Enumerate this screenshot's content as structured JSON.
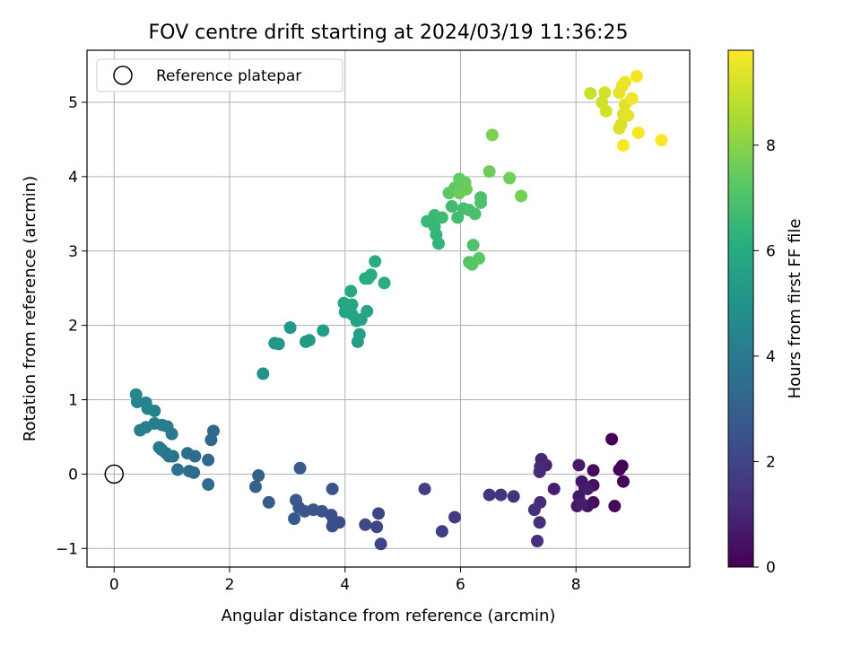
{
  "chart_data": {
    "type": "scatter",
    "title": "FOV centre drift starting at 2024/03/19 11:36:25",
    "xlabel": "Angular distance from reference (arcmin)",
    "ylabel": "Rotation from reference (arcmin)",
    "xlim": [
      -0.47,
      9.97
    ],
    "ylim": [
      -1.25,
      5.7
    ],
    "xticks": [
      0,
      2,
      4,
      6,
      8
    ],
    "yticks": [
      -1,
      0,
      1,
      2,
      3,
      4,
      5
    ],
    "grid": true,
    "legend": {
      "position": "upper left",
      "entries": [
        "Reference platepar"
      ]
    },
    "reference_point": {
      "x": 0,
      "y": 0
    },
    "colorbar": {
      "label": "Hours from first FF file",
      "colormap": "viridis",
      "range": [
        0,
        9.8
      ],
      "ticks": [
        0,
        2,
        4,
        6,
        8
      ]
    },
    "points": [
      {
        "x": 8.62,
        "y": 0.47,
        "c": 0.05
      },
      {
        "x": 8.8,
        "y": 0.11,
        "c": 0.1
      },
      {
        "x": 8.75,
        "y": 0.06,
        "c": 0.15
      },
      {
        "x": 8.82,
        "y": -0.1,
        "c": 0.2
      },
      {
        "x": 8.67,
        "y": -0.43,
        "c": 0.25
      },
      {
        "x": 8.3,
        "y": 0.05,
        "c": 0.3
      },
      {
        "x": 8.3,
        "y": -0.15,
        "c": 0.35
      },
      {
        "x": 8.3,
        "y": -0.38,
        "c": 0.4
      },
      {
        "x": 8.2,
        "y": -0.43,
        "c": 0.45
      },
      {
        "x": 8.15,
        "y": -0.18,
        "c": 0.5
      },
      {
        "x": 8.1,
        "y": -0.1,
        "c": 0.55
      },
      {
        "x": 8.05,
        "y": -0.3,
        "c": 0.6
      },
      {
        "x": 8.02,
        "y": -0.43,
        "c": 0.65
      },
      {
        "x": 8.05,
        "y": 0.12,
        "c": 0.7
      },
      {
        "x": 8.2,
        "y": -0.2,
        "c": 0.75
      },
      {
        "x": 8.1,
        "y": -0.4,
        "c": 0.8
      },
      {
        "x": 7.62,
        "y": -0.2,
        "c": 0.9
      },
      {
        "x": 7.48,
        "y": 0.12,
        "c": 1.0
      },
      {
        "x": 7.4,
        "y": 0.2,
        "c": 1.05
      },
      {
        "x": 7.38,
        "y": 0.1,
        "c": 1.1
      },
      {
        "x": 7.37,
        "y": 0.03,
        "c": 1.15
      },
      {
        "x": 7.38,
        "y": -0.38,
        "c": 1.2
      },
      {
        "x": 7.37,
        "y": -0.65,
        "c": 1.25
      },
      {
        "x": 7.33,
        "y": -0.9,
        "c": 1.3
      },
      {
        "x": 7.28,
        "y": -0.48,
        "c": 1.35
      },
      {
        "x": 6.92,
        "y": -0.3,
        "c": 1.4
      },
      {
        "x": 6.7,
        "y": -0.28,
        "c": 1.45
      },
      {
        "x": 6.5,
        "y": -0.28,
        "c": 1.5
      },
      {
        "x": 5.9,
        "y": -0.58,
        "c": 1.7
      },
      {
        "x": 5.68,
        "y": -0.77,
        "c": 1.8
      },
      {
        "x": 5.38,
        "y": -0.2,
        "c": 1.85
      },
      {
        "x": 4.62,
        "y": -0.94,
        "c": 2.0
      },
      {
        "x": 4.58,
        "y": -0.53,
        "c": 2.05
      },
      {
        "x": 4.55,
        "y": -0.71,
        "c": 2.1
      },
      {
        "x": 4.35,
        "y": -0.68,
        "c": 2.15
      },
      {
        "x": 3.9,
        "y": -0.65,
        "c": 2.25
      },
      {
        "x": 3.8,
        "y": -0.63,
        "c": 2.3
      },
      {
        "x": 3.78,
        "y": -0.7,
        "c": 2.35
      },
      {
        "x": 3.76,
        "y": -0.55,
        "c": 2.4
      },
      {
        "x": 3.78,
        "y": -0.2,
        "c": 2.45
      },
      {
        "x": 3.6,
        "y": -0.5,
        "c": 2.5
      },
      {
        "x": 3.45,
        "y": -0.48,
        "c": 2.55
      },
      {
        "x": 3.3,
        "y": -0.5,
        "c": 2.6
      },
      {
        "x": 3.2,
        "y": -0.45,
        "c": 2.65
      },
      {
        "x": 3.15,
        "y": -0.35,
        "c": 2.7
      },
      {
        "x": 3.12,
        "y": -0.6,
        "c": 2.75
      },
      {
        "x": 3.22,
        "y": 0.08,
        "c": 2.8
      },
      {
        "x": 2.68,
        "y": -0.38,
        "c": 2.9
      },
      {
        "x": 2.5,
        "y": -0.02,
        "c": 3.0
      },
      {
        "x": 2.45,
        "y": -0.17,
        "c": 3.05
      },
      {
        "x": 1.72,
        "y": 0.58,
        "c": 3.2
      },
      {
        "x": 1.68,
        "y": 0.46,
        "c": 3.25
      },
      {
        "x": 1.63,
        "y": 0.19,
        "c": 3.3
      },
      {
        "x": 1.63,
        "y": -0.14,
        "c": 3.35
      },
      {
        "x": 1.4,
        "y": 0.24,
        "c": 3.45
      },
      {
        "x": 1.38,
        "y": 0.02,
        "c": 3.5
      },
      {
        "x": 1.3,
        "y": 0.04,
        "c": 3.55
      },
      {
        "x": 1.27,
        "y": 0.28,
        "c": 3.6
      },
      {
        "x": 1.1,
        "y": 0.06,
        "c": 3.65
      },
      {
        "x": 1.02,
        "y": 0.24,
        "c": 3.7
      },
      {
        "x": 0.95,
        "y": 0.24,
        "c": 3.75
      },
      {
        "x": 0.9,
        "y": 0.28,
        "c": 3.8
      },
      {
        "x": 0.82,
        "y": 0.33,
        "c": 3.85
      },
      {
        "x": 0.78,
        "y": 0.36,
        "c": 3.9
      },
      {
        "x": 1.0,
        "y": 0.54,
        "c": 3.95
      },
      {
        "x": 0.92,
        "y": 0.64,
        "c": 4.0
      },
      {
        "x": 0.83,
        "y": 0.66,
        "c": 4.05
      },
      {
        "x": 0.7,
        "y": 0.68,
        "c": 4.1
      },
      {
        "x": 0.55,
        "y": 0.63,
        "c": 4.15
      },
      {
        "x": 0.45,
        "y": 0.59,
        "c": 4.2
      },
      {
        "x": 0.7,
        "y": 0.85,
        "c": 4.25
      },
      {
        "x": 0.58,
        "y": 0.88,
        "c": 4.3
      },
      {
        "x": 0.55,
        "y": 0.96,
        "c": 4.35
      },
      {
        "x": 0.4,
        "y": 0.97,
        "c": 4.4
      },
      {
        "x": 0.38,
        "y": 1.07,
        "c": 4.45
      },
      {
        "x": 2.58,
        "y": 1.35,
        "c": 5.0
      },
      {
        "x": 2.78,
        "y": 1.76,
        "c": 5.1
      },
      {
        "x": 2.85,
        "y": 1.75,
        "c": 5.15
      },
      {
        "x": 3.05,
        "y": 1.97,
        "c": 5.2
      },
      {
        "x": 3.32,
        "y": 1.78,
        "c": 5.25
      },
      {
        "x": 3.38,
        "y": 1.8,
        "c": 5.3
      },
      {
        "x": 3.62,
        "y": 1.93,
        "c": 5.4
      },
      {
        "x": 4.22,
        "y": 1.78,
        "c": 5.5
      },
      {
        "x": 4.25,
        "y": 1.88,
        "c": 5.55
      },
      {
        "x": 4.2,
        "y": 2.06,
        "c": 5.6
      },
      {
        "x": 4.28,
        "y": 2.08,
        "c": 5.65
      },
      {
        "x": 4.38,
        "y": 2.19,
        "c": 5.7
      },
      {
        "x": 4.12,
        "y": 2.15,
        "c": 5.72
      },
      {
        "x": 4.0,
        "y": 2.18,
        "c": 5.75
      },
      {
        "x": 3.98,
        "y": 2.3,
        "c": 5.8
      },
      {
        "x": 4.12,
        "y": 2.28,
        "c": 5.85
      },
      {
        "x": 4.1,
        "y": 2.46,
        "c": 5.9
      },
      {
        "x": 4.35,
        "y": 2.63,
        "c": 5.95
      },
      {
        "x": 4.4,
        "y": 2.63,
        "c": 6.0
      },
      {
        "x": 4.45,
        "y": 2.68,
        "c": 6.05
      },
      {
        "x": 4.52,
        "y": 2.86,
        "c": 6.1
      },
      {
        "x": 4.68,
        "y": 2.57,
        "c": 6.15
      },
      {
        "x": 5.62,
        "y": 3.1,
        "c": 6.4
      },
      {
        "x": 5.58,
        "y": 3.22,
        "c": 6.45
      },
      {
        "x": 5.55,
        "y": 3.33,
        "c": 6.5
      },
      {
        "x": 5.42,
        "y": 3.4,
        "c": 6.55
      },
      {
        "x": 5.55,
        "y": 3.48,
        "c": 6.6
      },
      {
        "x": 5.68,
        "y": 3.45,
        "c": 6.65
      },
      {
        "x": 5.85,
        "y": 3.6,
        "c": 6.7
      },
      {
        "x": 5.95,
        "y": 3.45,
        "c": 6.75
      },
      {
        "x": 6.05,
        "y": 3.57,
        "c": 6.8
      },
      {
        "x": 6.15,
        "y": 3.55,
        "c": 6.85
      },
      {
        "x": 6.25,
        "y": 3.5,
        "c": 6.9
      },
      {
        "x": 6.35,
        "y": 3.65,
        "c": 6.95
      },
      {
        "x": 6.35,
        "y": 3.72,
        "c": 7.0
      },
      {
        "x": 6.22,
        "y": 3.08,
        "c": 7.05
      },
      {
        "x": 6.15,
        "y": 2.85,
        "c": 7.1
      },
      {
        "x": 6.2,
        "y": 2.82,
        "c": 7.15
      },
      {
        "x": 6.32,
        "y": 2.9,
        "c": 7.2
      },
      {
        "x": 5.8,
        "y": 3.78,
        "c": 7.3
      },
      {
        "x": 5.9,
        "y": 3.85,
        "c": 7.35
      },
      {
        "x": 5.98,
        "y": 3.97,
        "c": 7.4
      },
      {
        "x": 6.08,
        "y": 3.92,
        "c": 7.45
      },
      {
        "x": 6.1,
        "y": 3.83,
        "c": 7.5
      },
      {
        "x": 5.98,
        "y": 3.78,
        "c": 7.55
      },
      {
        "x": 6.5,
        "y": 4.07,
        "c": 7.6
      },
      {
        "x": 6.85,
        "y": 3.98,
        "c": 7.65
      },
      {
        "x": 7.05,
        "y": 3.74,
        "c": 7.7
      },
      {
        "x": 6.55,
        "y": 4.56,
        "c": 7.8
      },
      {
        "x": 8.25,
        "y": 5.12,
        "c": 9.0
      },
      {
        "x": 8.45,
        "y": 5.0,
        "c": 9.05
      },
      {
        "x": 8.5,
        "y": 5.13,
        "c": 9.1
      },
      {
        "x": 8.52,
        "y": 4.88,
        "c": 9.15
      },
      {
        "x": 8.75,
        "y": 4.65,
        "c": 9.2
      },
      {
        "x": 8.78,
        "y": 4.7,
        "c": 9.25
      },
      {
        "x": 8.82,
        "y": 4.84,
        "c": 9.3
      },
      {
        "x": 8.85,
        "y": 4.97,
        "c": 9.35
      },
      {
        "x": 8.9,
        "y": 4.82,
        "c": 9.4
      },
      {
        "x": 8.75,
        "y": 5.13,
        "c": 9.45
      },
      {
        "x": 8.8,
        "y": 5.22,
        "c": 9.5
      },
      {
        "x": 8.85,
        "y": 5.27,
        "c": 9.55
      },
      {
        "x": 8.97,
        "y": 5.05,
        "c": 9.6
      },
      {
        "x": 9.05,
        "y": 5.35,
        "c": 9.65
      },
      {
        "x": 8.82,
        "y": 4.42,
        "c": 9.68
      },
      {
        "x": 9.08,
        "y": 4.59,
        "c": 9.72
      },
      {
        "x": 9.48,
        "y": 4.49,
        "c": 9.8
      }
    ]
  }
}
